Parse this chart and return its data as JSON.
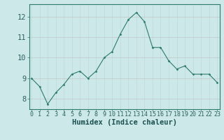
{
  "x": [
    0,
    1,
    2,
    3,
    4,
    5,
    6,
    7,
    8,
    9,
    10,
    11,
    12,
    13,
    14,
    15,
    16,
    17,
    18,
    19,
    20,
    21,
    22,
    23
  ],
  "y": [
    9.0,
    8.6,
    7.75,
    8.3,
    8.7,
    9.2,
    9.35,
    9.0,
    9.35,
    10.0,
    10.3,
    11.15,
    11.85,
    12.2,
    11.75,
    10.5,
    10.5,
    9.85,
    9.45,
    9.6,
    9.2,
    9.2,
    9.2,
    8.8
  ],
  "xlabel": "Humidex (Indice chaleur)",
  "yticks": [
    8,
    9,
    10,
    11,
    12
  ],
  "xticks": [
    0,
    1,
    2,
    3,
    4,
    5,
    6,
    7,
    8,
    9,
    10,
    11,
    12,
    13,
    14,
    15,
    16,
    17,
    18,
    19,
    20,
    21,
    22,
    23
  ],
  "ylim": [
    7.5,
    12.6
  ],
  "xlim": [
    -0.3,
    23.3
  ],
  "line_color": "#2d7a6e",
  "marker_color": "#2d7a6e",
  "bg_color": "#cce8e8",
  "grid_color_v": "#c0d8d8",
  "grid_color_h": "#c0c8c8",
  "axis_color": "#2d7a6e",
  "tick_label_color": "#2d6060",
  "xlabel_color": "#1a5050",
  "xlabel_fontsize": 7.5,
  "tick_fontsize_x": 6.0,
  "tick_fontsize_y": 7.5
}
